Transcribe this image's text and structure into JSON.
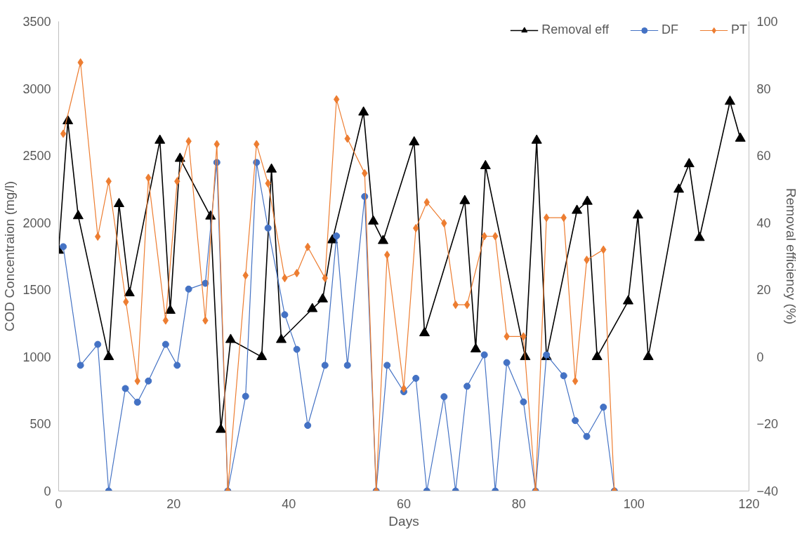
{
  "chart_data": {
    "type": "line",
    "xlabel": "Days",
    "ylabel": "COD Concentraion (mg/l)",
    "y2label": "Removal efficiency (%)",
    "xlim": [
      0,
      120
    ],
    "xticks": [
      0,
      20,
      40,
      60,
      80,
      100,
      120
    ],
    "ylim": [
      0,
      3500
    ],
    "yticks": [
      0,
      500,
      1000,
      1500,
      2000,
      2500,
      3000,
      3500
    ],
    "y2lim": [
      -40,
      100
    ],
    "y2ticks": [
      -40,
      -20,
      0,
      20,
      40,
      60,
      80,
      100
    ],
    "grid": false,
    "legend": "top right",
    "line_style": "solid",
    "series": [
      {
        "name": "Removal eff",
        "color": "#000000",
        "axis": "y2",
        "marker": "triangle",
        "x": [
          0,
          1.6,
          3.4,
          8.7,
          10.5,
          12.3,
          17.6,
          19.4,
          21.1,
          26.4,
          28.2,
          29.9,
          35.3,
          37.0,
          38.7,
          44.1,
          45.9,
          47.6,
          53.0,
          54.7,
          56.4,
          61.8,
          63.6,
          70.6,
          72.5,
          74.2,
          81.1,
          83.1,
          84.8,
          90.1,
          91.9,
          93.6,
          99.0,
          100.7,
          102.5,
          107.8,
          109.6,
          111.4,
          116.7,
          118.5
        ],
        "values": [
          31.7,
          70.3,
          42,
          0,
          45.6,
          19,
          64.5,
          13.8,
          59.1,
          41.9,
          -21.7,
          5.1,
          0,
          55.9,
          5.1,
          14.3,
          17.2,
          34.8,
          72.9,
          40.4,
          34.6,
          64,
          7.1,
          46.5,
          2.3,
          56.9,
          0,
          64.5,
          0,
          43.6,
          46.3,
          0,
          16.6,
          42.2,
          0,
          49.9,
          57.5,
          35.5,
          76.1,
          65.1
        ]
      },
      {
        "name": "DF",
        "color": "#4472c4",
        "marker": "circle",
        "x": [
          0.8,
          3.8,
          6.8,
          8.7,
          11.6,
          13.7,
          15.6,
          18.6,
          20.6,
          22.6,
          25.5,
          27.5,
          29.4,
          32.5,
          34.4,
          36.4,
          39.3,
          41.4,
          43.3,
          46.3,
          48.3,
          50.2,
          53.2,
          55.2,
          57.1,
          60.0,
          62.1,
          64.0,
          67.0,
          69.0,
          71.0,
          74.0,
          75.9,
          77.9,
          80.8,
          82.9,
          84.8,
          87.8,
          89.8,
          91.8,
          94.7,
          96.6
        ],
        "values": [
          1821,
          937,
          1093,
          0,
          764,
          662,
          820,
          1093,
          937,
          1505,
          1548,
          2449,
          0,
          706,
          2449,
          1960,
          1314,
          1056,
          489,
          937,
          1901,
          937,
          2195,
          0,
          937,
          740,
          840,
          0,
          703,
          0,
          781,
          1015,
          0,
          957,
          664,
          0,
          1015,
          859,
          525,
          407,
          625,
          0
        ]
      },
      {
        "name": "PT",
        "color": "#ed7d31",
        "marker": "diamond",
        "x": [
          0.8,
          3.8,
          6.8,
          8.7,
          11.7,
          13.7,
          15.6,
          18.6,
          20.6,
          22.6,
          25.5,
          27.5,
          29.4,
          32.5,
          34.4,
          36.4,
          39.3,
          41.4,
          43.3,
          46.3,
          48.3,
          50.2,
          53.2,
          55.2,
          57.1,
          60.0,
          62.1,
          64.0,
          67.0,
          69.0,
          71.0,
          74.0,
          75.9,
          77.9,
          80.8,
          82.9,
          84.8,
          87.8,
          89.8,
          91.8,
          94.7,
          96.6
        ],
        "values": [
          2663,
          3194,
          1896,
          2308,
          1410,
          820,
          2334,
          1271,
          2308,
          2607,
          1271,
          2585,
          0,
          1607,
          2585,
          2293,
          1587,
          1624,
          1819,
          1587,
          2919,
          2626,
          2368,
          0,
          1760,
          764,
          1959,
          2152,
          1996,
          1388,
          1388,
          1899,
          1899,
          1152,
          1152,
          0,
          2037,
          2037,
          820,
          1723,
          1799,
          0
        ]
      }
    ]
  }
}
